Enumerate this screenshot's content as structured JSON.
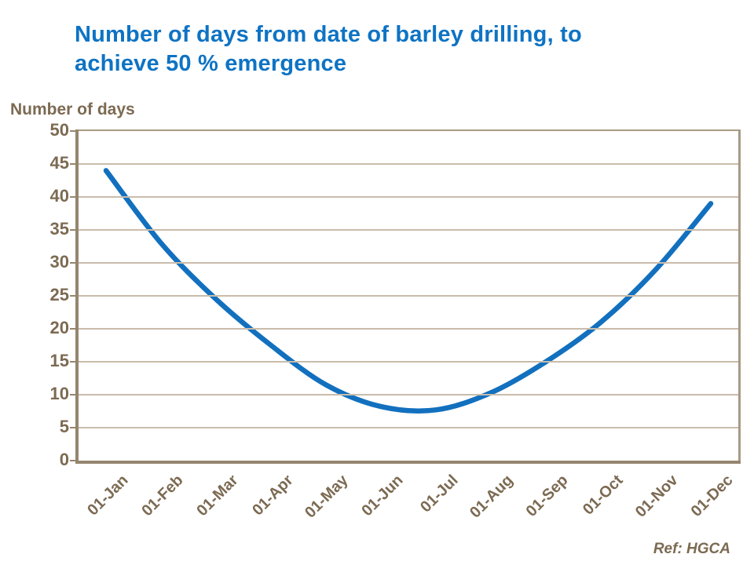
{
  "title": {
    "text": "Number of days from date of barley drilling, to\nachieve 50 % emergence"
  },
  "ref_note": "Ref: HGCA",
  "colors": {
    "title_blue": "#0E73C4",
    "curve_blue": "#1270BE",
    "axis_text_brown": "#7C6A52",
    "gridline": "#C9BCAB",
    "axis_line_dark": "#95866F",
    "plot_border": "#A89A85",
    "background": "#FFFFFF"
  },
  "chart_data": {
    "type": "line",
    "title": "Number of days from date of barley drilling, to achieve 50 % emergence",
    "xlabel": "",
    "ylabel": "Number of days",
    "categories": [
      "01-Jan",
      "01-Feb",
      "01-Mar",
      "01-Apr",
      "01-May",
      "01-Jun",
      "01-Jul",
      "01-Aug",
      "01-Sep",
      "01-Oct",
      "01-Nov",
      "01-Dec"
    ],
    "values": [
      44,
      33,
      24.5,
      17.5,
      11.5,
      8.2,
      7.7,
      10.3,
      15,
      21,
      29,
      39
    ],
    "ylim": [
      0,
      50
    ],
    "y_ticks": [
      0,
      5,
      10,
      15,
      20,
      25,
      30,
      35,
      40,
      45,
      50
    ],
    "grid": "horizontal-only",
    "legend": "none",
    "smooth": true,
    "markers": "none",
    "annotation": "Ref: HGCA"
  }
}
